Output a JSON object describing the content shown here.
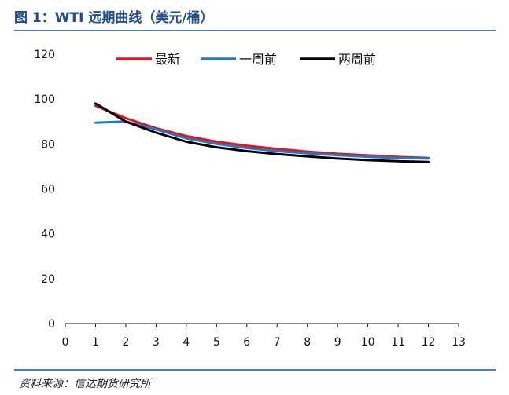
{
  "header": {
    "title": "图 1：WTI 远期曲线（美元/桶）"
  },
  "footer": {
    "source": "资料来源：信达期货研究所"
  },
  "chart_data": {
    "type": "line",
    "title": "图 1：WTI 远期曲线（美元/桶）",
    "xlabel": "",
    "ylabel": "",
    "xlim": [
      0,
      13
    ],
    "ylim": [
      0,
      120
    ],
    "x_ticks": [
      0,
      1,
      2,
      3,
      4,
      5,
      6,
      7,
      8,
      9,
      10,
      11,
      12,
      13
    ],
    "y_ticks": [
      0,
      20,
      40,
      60,
      80,
      100,
      120
    ],
    "grid": false,
    "legend": "top",
    "series": [
      {
        "name": "最新",
        "color": "#e8111c",
        "x": [
          1,
          2,
          3,
          4,
          5,
          6,
          7,
          8,
          9,
          10,
          11,
          12
        ],
        "values": [
          97.0,
          91.5,
          87.0,
          83.5,
          81.0,
          79.2,
          77.8,
          76.6,
          75.6,
          74.9,
          74.2,
          73.8
        ]
      },
      {
        "name": "一周前",
        "color": "#1f78c8",
        "x": [
          1,
          2,
          3,
          4,
          5,
          6,
          7,
          8,
          9,
          10,
          11,
          12
        ],
        "values": [
          89.5,
          90.0,
          86.5,
          82.5,
          80.0,
          78.2,
          76.8,
          75.8,
          75.0,
          74.3,
          73.8,
          73.5
        ]
      },
      {
        "name": "两周前",
        "color": "#000000",
        "x": [
          1,
          2,
          3,
          4,
          5,
          6,
          7,
          8,
          9,
          10,
          11,
          12
        ],
        "values": [
          98.0,
          90.0,
          85.0,
          81.0,
          78.5,
          76.8,
          75.5,
          74.5,
          73.5,
          72.8,
          72.3,
          72.0
        ]
      }
    ]
  }
}
